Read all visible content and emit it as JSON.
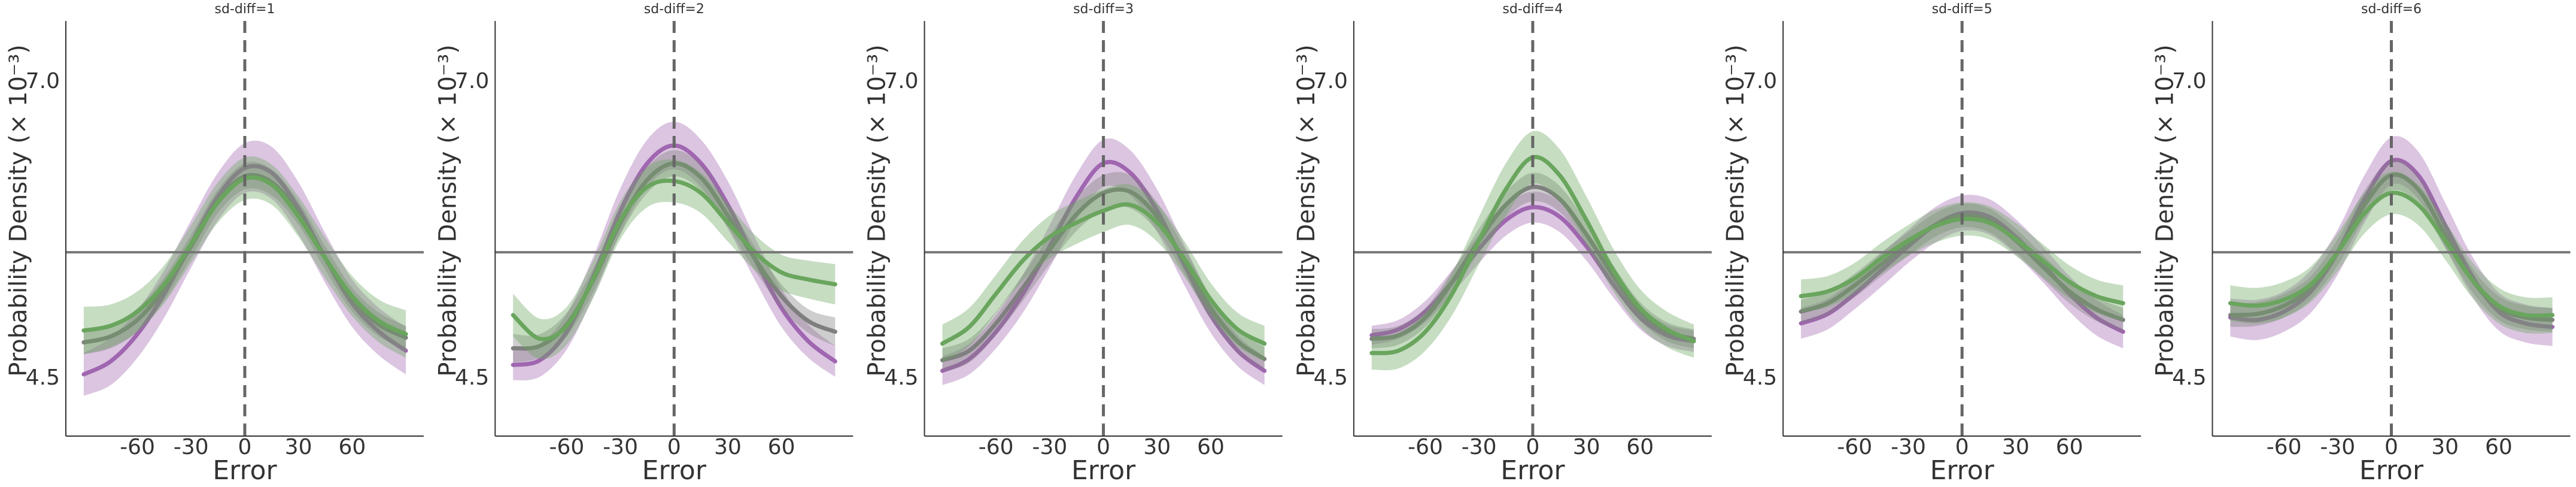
{
  "chart_data": [
    {
      "type": "line",
      "title": "sd-diff=1",
      "xlabel": "Error",
      "ylabel": "Probability Density (× 10⁻³)",
      "xlim": [
        -100,
        100
      ],
      "ylim": [
        4.0,
        7.5
      ],
      "x_ticks": [
        -60,
        -30,
        0,
        30,
        60
      ],
      "y_ticks": [
        4.5,
        7.0
      ],
      "ref_lines": {
        "horizontal": 5.55,
        "vertical": 0
      },
      "x": [
        -90,
        -75,
        -60,
        -45,
        -30,
        -15,
        0,
        15,
        30,
        45,
        60,
        75,
        90
      ],
      "series": [
        {
          "color": "#a066b0",
          "values": [
            4.52,
            4.63,
            4.86,
            5.2,
            5.62,
            6.02,
            6.26,
            6.22,
            5.92,
            5.5,
            5.12,
            4.88,
            4.72
          ],
          "band": [
            0.18,
            0.2,
            0.2,
            0.2,
            0.2,
            0.2,
            0.21,
            0.22,
            0.22,
            0.21,
            0.2,
            0.2,
            0.2
          ]
        },
        {
          "color": "#7f7f7f",
          "values": [
            4.79,
            4.84,
            4.98,
            5.24,
            5.6,
            5.98,
            6.19,
            6.14,
            5.88,
            5.5,
            5.15,
            4.94,
            4.83
          ],
          "band": [
            0.1,
            0.1,
            0.1,
            0.1,
            0.1,
            0.1,
            0.11,
            0.11,
            0.1,
            0.1,
            0.1,
            0.1,
            0.1
          ]
        },
        {
          "color": "#6aa55e",
          "values": [
            4.89,
            4.93,
            5.05,
            5.28,
            5.62,
            5.97,
            6.17,
            6.12,
            5.85,
            5.5,
            5.18,
            4.97,
            4.86
          ],
          "band": [
            0.2,
            0.18,
            0.17,
            0.16,
            0.16,
            0.17,
            0.18,
            0.17,
            0.17,
            0.17,
            0.17,
            0.18,
            0.2
          ]
        }
      ]
    },
    {
      "type": "line",
      "title": "sd-diff=2",
      "xlabel": "Error",
      "ylabel": "Probability Density (× 10⁻³)",
      "xlim": [
        -100,
        100
      ],
      "ylim": [
        4.0,
        7.5
      ],
      "x_ticks": [
        -60,
        -30,
        0,
        30,
        60
      ],
      "y_ticks": [
        4.5,
        7.0
      ],
      "ref_lines": {
        "horizontal": 5.55,
        "vertical": 0
      },
      "x": [
        -90,
        -75,
        -60,
        -45,
        -30,
        -15,
        0,
        15,
        30,
        45,
        60,
        75,
        90
      ],
      "series": [
        {
          "color": "#a066b0",
          "values": [
            4.6,
            4.64,
            4.88,
            5.35,
            5.9,
            6.3,
            6.45,
            6.3,
            5.95,
            5.5,
            5.08,
            4.8,
            4.63
          ],
          "band": [
            0.13,
            0.14,
            0.15,
            0.17,
            0.19,
            0.2,
            0.2,
            0.2,
            0.2,
            0.18,
            0.16,
            0.14,
            0.13
          ]
        },
        {
          "color": "#7f7f7f",
          "values": [
            4.74,
            4.76,
            4.94,
            5.32,
            5.8,
            6.16,
            6.3,
            6.18,
            5.86,
            5.5,
            5.18,
            4.97,
            4.88
          ],
          "band": [
            0.12,
            0.1,
            0.1,
            0.1,
            0.1,
            0.11,
            0.11,
            0.11,
            0.1,
            0.1,
            0.1,
            0.1,
            0.12
          ]
        },
        {
          "color": "#6aa55e",
          "values": [
            5.02,
            4.82,
            4.93,
            5.33,
            5.82,
            6.1,
            6.15,
            6.05,
            5.8,
            5.55,
            5.38,
            5.32,
            5.28
          ],
          "band": [
            0.18,
            0.17,
            0.16,
            0.16,
            0.16,
            0.17,
            0.18,
            0.17,
            0.16,
            0.15,
            0.15,
            0.16,
            0.17
          ]
        }
      ]
    },
    {
      "type": "line",
      "title": "sd-diff=3",
      "xlabel": "Error",
      "ylabel": "Probability Density (× 10⁻³)",
      "xlim": [
        -100,
        100
      ],
      "ylim": [
        4.0,
        7.5
      ],
      "x_ticks": [
        -60,
        -30,
        0,
        30,
        60
      ],
      "y_ticks": [
        4.5,
        7.0
      ],
      "ref_lines": {
        "horizontal": 5.55,
        "vertical": 0
      },
      "x": [
        -90,
        -75,
        -60,
        -45,
        -30,
        -15,
        0,
        15,
        30,
        45,
        60,
        75,
        90
      ],
      "series": [
        {
          "color": "#a066b0",
          "values": [
            4.55,
            4.65,
            4.88,
            5.2,
            5.6,
            6.02,
            6.3,
            6.22,
            5.9,
            5.45,
            5.02,
            4.72,
            4.55
          ],
          "band": [
            0.12,
            0.13,
            0.14,
            0.16,
            0.18,
            0.19,
            0.2,
            0.19,
            0.18,
            0.17,
            0.15,
            0.13,
            0.12
          ]
        },
        {
          "color": "#7f7f7f",
          "values": [
            4.64,
            4.72,
            4.95,
            5.25,
            5.57,
            5.87,
            6.05,
            6.06,
            5.85,
            5.48,
            5.08,
            4.8,
            4.65
          ],
          "band": [
            0.1,
            0.1,
            0.1,
            0.11,
            0.12,
            0.14,
            0.15,
            0.14,
            0.12,
            0.11,
            0.1,
            0.1,
            0.1
          ]
        },
        {
          "color": "#6aa55e",
          "values": [
            4.78,
            4.92,
            5.2,
            5.48,
            5.68,
            5.8,
            5.9,
            5.95,
            5.8,
            5.5,
            5.15,
            4.9,
            4.78
          ],
          "band": [
            0.16,
            0.16,
            0.16,
            0.17,
            0.18,
            0.18,
            0.18,
            0.17,
            0.16,
            0.15,
            0.14,
            0.14,
            0.15
          ]
        }
      ]
    },
    {
      "type": "line",
      "title": "sd-diff=4",
      "xlabel": "Error",
      "ylabel": "Probability Density (× 10⁻³)",
      "xlim": [
        -100,
        100
      ],
      "ylim": [
        4.0,
        7.5
      ],
      "x_ticks": [
        -60,
        -30,
        0,
        30,
        60
      ],
      "y_ticks": [
        4.5,
        7.0
      ],
      "ref_lines": {
        "horizontal": 5.55,
        "vertical": 0
      },
      "x": [
        -90,
        -75,
        -60,
        -45,
        -30,
        -15,
        0,
        15,
        30,
        45,
        60,
        75,
        90
      ],
      "series": [
        {
          "color": "#a066b0",
          "values": [
            4.85,
            4.9,
            5.05,
            5.3,
            5.58,
            5.82,
            5.93,
            5.85,
            5.6,
            5.28,
            5.0,
            4.85,
            4.8
          ],
          "band": [
            0.08,
            0.08,
            0.09,
            0.1,
            0.12,
            0.13,
            0.13,
            0.13,
            0.12,
            0.11,
            0.1,
            0.09,
            0.09
          ]
        },
        {
          "color": "#7f7f7f",
          "values": [
            4.82,
            4.85,
            5.0,
            5.3,
            5.65,
            5.95,
            6.1,
            6.0,
            5.7,
            5.35,
            5.05,
            4.88,
            4.82
          ],
          "band": [
            0.08,
            0.08,
            0.08,
            0.09,
            0.1,
            0.11,
            0.12,
            0.11,
            0.1,
            0.09,
            0.08,
            0.08,
            0.08
          ]
        },
        {
          "color": "#6aa55e",
          "values": [
            4.7,
            4.72,
            4.88,
            5.2,
            5.65,
            6.08,
            6.35,
            6.2,
            5.82,
            5.4,
            5.08,
            4.9,
            4.8
          ],
          "band": [
            0.14,
            0.15,
            0.16,
            0.18,
            0.2,
            0.22,
            0.22,
            0.22,
            0.2,
            0.18,
            0.16,
            0.15,
            0.14
          ]
        }
      ]
    },
    {
      "type": "line",
      "title": "sd-diff=5",
      "xlabel": "Error",
      "ylabel": "Probability Density (× 10⁻³)",
      "xlim": [
        -100,
        100
      ],
      "ylim": [
        4.0,
        7.5
      ],
      "x_ticks": [
        -60,
        -30,
        0,
        30,
        60
      ],
      "y_ticks": [
        4.5,
        7.0
      ],
      "ref_lines": {
        "horizontal": 5.55,
        "vertical": 0
      },
      "x": [
        -90,
        -75,
        -60,
        -45,
        -30,
        -15,
        0,
        15,
        30,
        45,
        60,
        75,
        90
      ],
      "series": [
        {
          "color": "#a066b0",
          "values": [
            4.95,
            5.03,
            5.2,
            5.4,
            5.6,
            5.78,
            5.88,
            5.85,
            5.68,
            5.45,
            5.2,
            5.0,
            4.88
          ],
          "band": [
            0.13,
            0.13,
            0.13,
            0.14,
            0.14,
            0.15,
            0.15,
            0.15,
            0.15,
            0.15,
            0.15,
            0.15,
            0.14
          ]
        },
        {
          "color": "#7f7f7f",
          "values": [
            5.05,
            5.12,
            5.27,
            5.45,
            5.62,
            5.78,
            5.86,
            5.82,
            5.65,
            5.43,
            5.22,
            5.07,
            4.98
          ],
          "band": [
            0.1,
            0.1,
            0.1,
            0.1,
            0.1,
            0.1,
            0.1,
            0.1,
            0.1,
            0.1,
            0.1,
            0.1,
            0.1
          ]
        },
        {
          "color": "#6aa55e",
          "values": [
            5.18,
            5.22,
            5.33,
            5.5,
            5.65,
            5.77,
            5.83,
            5.8,
            5.66,
            5.48,
            5.3,
            5.18,
            5.12
          ],
          "band": [
            0.14,
            0.13,
            0.13,
            0.13,
            0.13,
            0.14,
            0.14,
            0.14,
            0.14,
            0.14,
            0.14,
            0.14,
            0.15
          ]
        }
      ]
    },
    {
      "type": "line",
      "title": "sd-diff=6",
      "xlabel": "Error",
      "ylabel": "Probability Density (× 10⁻³)",
      "xlim": [
        -100,
        100
      ],
      "ylim": [
        4.0,
        7.5
      ],
      "x_ticks": [
        -60,
        -30,
        0,
        30,
        60
      ],
      "y_ticks": [
        4.5,
        7.0
      ],
      "ref_lines": {
        "horizontal": 5.55,
        "vertical": 0
      },
      "x": [
        -90,
        -75,
        -60,
        -45,
        -30,
        -15,
        0,
        15,
        30,
        45,
        60,
        75,
        90
      ],
      "series": [
        {
          "color": "#a066b0",
          "values": [
            5.0,
            4.98,
            5.05,
            5.22,
            5.55,
            6.0,
            6.32,
            6.2,
            5.78,
            5.35,
            5.05,
            4.95,
            4.92
          ],
          "band": [
            0.16,
            0.17,
            0.17,
            0.18,
            0.19,
            0.2,
            0.2,
            0.2,
            0.19,
            0.17,
            0.16,
            0.16,
            0.16
          ]
        },
        {
          "color": "#7f7f7f",
          "values": [
            5.02,
            5.03,
            5.1,
            5.25,
            5.55,
            5.95,
            6.2,
            6.08,
            5.7,
            5.32,
            5.08,
            5.0,
            4.98
          ],
          "band": [
            0.1,
            0.1,
            0.1,
            0.1,
            0.11,
            0.12,
            0.13,
            0.12,
            0.11,
            0.1,
            0.1,
            0.1,
            0.1
          ]
        },
        {
          "color": "#6aa55e",
          "values": [
            5.12,
            5.1,
            5.15,
            5.28,
            5.55,
            5.88,
            6.05,
            5.95,
            5.65,
            5.32,
            5.1,
            5.02,
            5.02
          ],
          "band": [
            0.15,
            0.15,
            0.15,
            0.15,
            0.16,
            0.17,
            0.18,
            0.17,
            0.16,
            0.15,
            0.15,
            0.15,
            0.15
          ]
        }
      ]
    }
  ]
}
